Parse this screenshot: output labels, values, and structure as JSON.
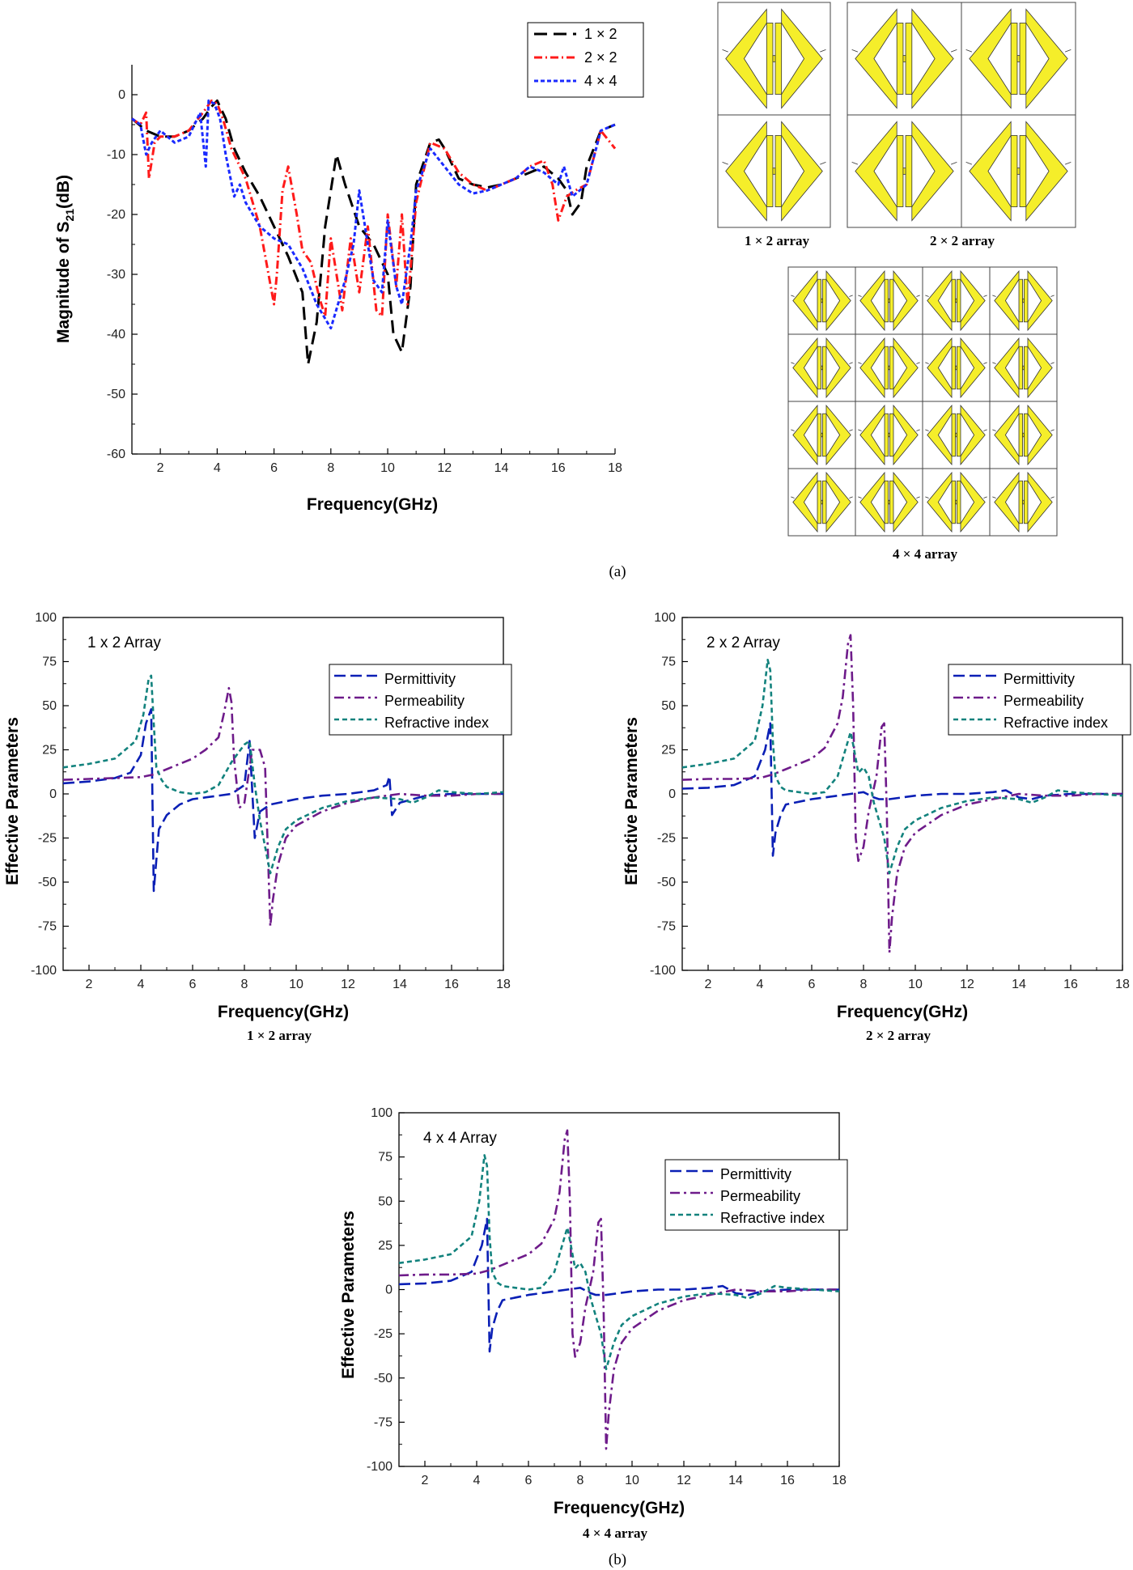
{
  "panel_labels": {
    "a": "(a)",
    "b": "(b)"
  },
  "unit_cells": {
    "captions": [
      "1 × 2 array",
      "2 × 2 array",
      "4 × 4 array"
    ],
    "fill_color": "#f5ee2a",
    "outline_color": "#333333",
    "grids": [
      [
        2,
        1
      ],
      [
        2,
        2
      ],
      [
        4,
        4
      ]
    ]
  },
  "chart_data": [
    {
      "type": "line",
      "ylabel": "Magnitude of S21(dB)",
      "ylabel_main": "Magnitude of S",
      "ylabel_sub": "21",
      "ylabel_tail": "(dB)",
      "xlabel": "Frequency(GHz)",
      "xlim": [
        1,
        18
      ],
      "ylim": [
        -60,
        5
      ],
      "xticks": [
        2,
        4,
        6,
        8,
        10,
        12,
        14,
        16,
        18
      ],
      "yticks": [
        0,
        -10,
        -20,
        -30,
        -40,
        -50,
        -60
      ],
      "legend_position": "top-right",
      "series": [
        {
          "name": "1 × 2",
          "color": "#000000",
          "dash": "16 8",
          "x": [
            1,
            1.5,
            2,
            2.5,
            3,
            3.5,
            3.8,
            4,
            4.3,
            4.6,
            5,
            5.5,
            6,
            6.5,
            7,
            7.2,
            7.5,
            7.8,
            8.2,
            8.5,
            9,
            9.5,
            10,
            10.2,
            10.5,
            10.8,
            11,
            11.5,
            11.8,
            12,
            12.5,
            13,
            13.5,
            14,
            14.5,
            15,
            15.5,
            16,
            16.3,
            16.5,
            16.8,
            17,
            17.5,
            18
          ],
          "y": [
            -4,
            -6,
            -7,
            -7,
            -6,
            -4,
            -2,
            -1,
            -4,
            -9,
            -13,
            -17,
            -22,
            -27,
            -33,
            -45,
            -38,
            -22,
            -10,
            -15,
            -22,
            -25,
            -30,
            -40,
            -43,
            -32,
            -15,
            -8,
            -7.5,
            -9,
            -14,
            -15,
            -15.5,
            -15,
            -14,
            -13,
            -12,
            -14,
            -16,
            -20,
            -18,
            -12,
            -6,
            -5
          ]
        },
        {
          "name": "2 × 2",
          "color": "#ff1a1a",
          "dash": "10 4 2 4",
          "x": [
            1,
            1.3,
            1.5,
            1.6,
            1.8,
            2,
            2.5,
            3,
            3.5,
            3.8,
            4,
            4.2,
            4.5,
            4.8,
            5,
            5.5,
            6,
            6.1,
            6.3,
            6.5,
            6.8,
            7,
            7.3,
            7.6,
            7.8,
            8,
            8.2,
            8.4,
            8.7,
            9,
            9.3,
            9.6,
            9.8,
            10,
            10.3,
            10.5,
            10.7,
            11,
            11.5,
            12,
            12.5,
            13,
            13.5,
            14,
            14.5,
            15,
            15.5,
            15.8,
            16,
            16.3,
            16.6,
            17,
            17.5,
            18
          ],
          "y": [
            -4,
            -5,
            -3,
            -14,
            -8,
            -7,
            -7,
            -6,
            -3,
            -1,
            -1.5,
            -4,
            -9,
            -12,
            -14,
            -22,
            -35,
            -30,
            -16,
            -12,
            -20,
            -26,
            -28,
            -34,
            -37,
            -24,
            -30,
            -36,
            -24,
            -33,
            -22,
            -36,
            -37,
            -20,
            -32,
            -20,
            -35,
            -18,
            -8,
            -9,
            -13,
            -15,
            -16,
            -15,
            -14,
            -12,
            -11,
            -15,
            -21,
            -17,
            -16,
            -15,
            -6,
            -9
          ]
        },
        {
          "name": "4 × 4",
          "color": "#1a2aff",
          "dash": "5 3",
          "x": [
            1,
            1.3,
            1.5,
            1.7,
            2,
            2.5,
            3,
            3.4,
            3.6,
            3.7,
            3.9,
            4.1,
            4.3,
            4.6,
            4.8,
            5,
            5.5,
            6,
            6.5,
            7,
            7.5,
            8,
            8.5,
            8.8,
            9,
            9.2,
            9.5,
            9.8,
            10,
            10.3,
            10.5,
            10.8,
            11,
            11.5,
            12,
            12.5,
            13,
            13.5,
            14,
            14.5,
            15,
            15.5,
            16,
            16.2,
            16.5,
            17,
            17.5,
            18
          ],
          "y": [
            -4,
            -5,
            -10,
            -8,
            -6,
            -8,
            -7,
            -3,
            -12,
            -1,
            -1.5,
            -4,
            -10,
            -17,
            -15,
            -18,
            -22,
            -24,
            -25,
            -29,
            -35,
            -39,
            -31,
            -25,
            -16,
            -22,
            -31,
            -33,
            -21,
            -32,
            -35,
            -25,
            -16,
            -9,
            -12,
            -15,
            -16.5,
            -16,
            -15,
            -14,
            -12,
            -13,
            -15,
            -12,
            -17,
            -15,
            -6,
            -5
          ]
        }
      ]
    },
    {
      "type": "line",
      "annotation": "1 x 2 Array",
      "caption": "1 × 2 array",
      "ylabel": "Effective Parameters",
      "xlabel": "Frequency(GHz)",
      "xlim": [
        1,
        18
      ],
      "ylim": [
        -100,
        100
      ],
      "xticks": [
        2,
        4,
        6,
        8,
        10,
        12,
        14,
        16,
        18
      ],
      "yticks": [
        100,
        75,
        50,
        25,
        0,
        -25,
        -50,
        -75,
        -100
      ],
      "legend_position": "top-right",
      "series": [
        {
          "name": "Permittivity",
          "color": "#0a1fb5",
          "dash": "14 6",
          "x": [
            1,
            2,
            3,
            3.6,
            4,
            4.2,
            4.4,
            4.5,
            4.7,
            5,
            5.5,
            6,
            7,
            7.5,
            8,
            8.2,
            8.4,
            8.6,
            9,
            10,
            11,
            12,
            13,
            13.5,
            13.6,
            13.7,
            14,
            15,
            16,
            17,
            18
          ],
          "y": [
            6,
            7,
            9,
            12,
            22,
            40,
            48,
            -55,
            -20,
            -12,
            -6,
            -3,
            -1,
            0,
            5,
            30,
            -25,
            -10,
            -6,
            -3,
            -1,
            0,
            2,
            5,
            10,
            -12,
            -5,
            -1,
            0,
            0,
            0
          ]
        },
        {
          "name": "Permeability",
          "color": "#6e1b8a",
          "dash": "12 5 3 5",
          "x": [
            1,
            2,
            3,
            4,
            4.5,
            5,
            6,
            6.5,
            7,
            7.2,
            7.4,
            7.5,
            7.6,
            7.8,
            8,
            8.3,
            8.6,
            8.8,
            8.9,
            9,
            9.1,
            9.3,
            9.6,
            10,
            11,
            12,
            13,
            14,
            15,
            16,
            17,
            18
          ],
          "y": [
            8,
            8.5,
            9,
            9.5,
            11,
            14,
            20,
            25,
            32,
            45,
            60,
            52,
            20,
            -8,
            -5,
            25,
            25,
            15,
            -30,
            -75,
            -60,
            -40,
            -25,
            -18,
            -10,
            -5,
            -2,
            0,
            -1,
            -1,
            0,
            0
          ]
        },
        {
          "name": "Refractive index",
          "color": "#12827d",
          "dash": "6 4",
          "x": [
            1,
            2,
            3,
            3.8,
            4.1,
            4.3,
            4.4,
            4.5,
            4.6,
            4.8,
            5,
            5.5,
            6,
            6.5,
            7,
            7.5,
            8,
            8.2,
            8.4,
            8.6,
            8.8,
            9,
            9.3,
            9.6,
            10,
            11,
            12,
            13,
            14,
            14.5,
            15,
            15.5,
            16,
            17,
            18
          ],
          "y": [
            15,
            17,
            20,
            30,
            45,
            65,
            67,
            40,
            15,
            8,
            4,
            1,
            0,
            1,
            5,
            18,
            28,
            30,
            5,
            -15,
            -30,
            -45,
            -30,
            -20,
            -15,
            -8,
            -4,
            -2,
            -3,
            -5,
            -2,
            2,
            1,
            0,
            1
          ]
        }
      ]
    },
    {
      "type": "line",
      "annotation": "2 x 2 Array",
      "caption": "2 × 2 array",
      "ylabel": "Effective Parameters",
      "xlabel": "Frequency(GHz)",
      "xlim": [
        1,
        18
      ],
      "ylim": [
        -100,
        100
      ],
      "xticks": [
        2,
        4,
        6,
        8,
        10,
        12,
        14,
        16,
        18
      ],
      "yticks": [
        100,
        75,
        50,
        25,
        0,
        -25,
        -50,
        -75,
        -100
      ],
      "legend_position": "top-right",
      "series": [
        {
          "name": "Permittivity",
          "color": "#0a1fb5",
          "dash": "14 6",
          "x": [
            1,
            2,
            3,
            3.8,
            4.2,
            4.4,
            4.5,
            4.6,
            4.8,
            5,
            6,
            7,
            7.5,
            8,
            8.4,
            8.6,
            9,
            10,
            11,
            12,
            13,
            13.5,
            14,
            14.5,
            15,
            16,
            17,
            18
          ],
          "y": [
            3,
            3.5,
            5,
            10,
            25,
            40,
            -35,
            -22,
            -12,
            -6,
            -3,
            -1,
            0,
            1,
            -2,
            -3,
            -3,
            -1,
            0,
            0,
            1,
            2,
            -2,
            -3,
            -1,
            0,
            0,
            0
          ]
        },
        {
          "name": "Permeability",
          "color": "#6e1b8a",
          "dash": "12 5 3 5",
          "x": [
            1,
            2,
            3,
            4,
            4.5,
            5,
            6,
            6.5,
            7,
            7.2,
            7.4,
            7.5,
            7.6,
            7.7,
            7.8,
            8,
            8.2,
            8.5,
            8.7,
            8.8,
            8.9,
            9,
            9.1,
            9.3,
            9.6,
            10,
            11,
            12,
            13,
            14,
            15,
            16,
            17,
            18
          ],
          "y": [
            8,
            8.5,
            8.5,
            9,
            11,
            14,
            20,
            26,
            40,
            55,
            85,
            90,
            50,
            -25,
            -38,
            -30,
            -10,
            10,
            38,
            40,
            -10,
            -90,
            -70,
            -45,
            -30,
            -22,
            -12,
            -6,
            -3,
            0,
            -1,
            -1,
            0,
            0
          ]
        },
        {
          "name": "Refractive index",
          "color": "#12827d",
          "dash": "6 4",
          "x": [
            1,
            2,
            3,
            3.8,
            4.1,
            4.3,
            4.4,
            4.5,
            4.6,
            4.8,
            5,
            5.5,
            6,
            6.5,
            7,
            7.3,
            7.5,
            7.6,
            7.8,
            8,
            8.2,
            8.4,
            8.6,
            8.8,
            9,
            9.3,
            9.6,
            10,
            11,
            12,
            13,
            14,
            14.5,
            15,
            15.5,
            16,
            17,
            18
          ],
          "y": [
            15,
            17,
            20,
            30,
            50,
            76,
            70,
            30,
            10,
            4,
            2,
            1,
            0,
            1,
            10,
            25,
            35,
            28,
            12,
            15,
            10,
            -5,
            -15,
            -25,
            -45,
            -30,
            -20,
            -15,
            -8,
            -4,
            -2,
            -3,
            -5,
            -2,
            2,
            1,
            0,
            -1
          ]
        }
      ]
    },
    {
      "type": "line",
      "annotation": "4 x 4 Array",
      "caption": "4 × 4 array",
      "ylabel": "Effective Parameters",
      "xlabel": "Frequency(GHz)",
      "xlim": [
        1,
        18
      ],
      "ylim": [
        -100,
        100
      ],
      "xticks": [
        2,
        4,
        6,
        8,
        10,
        12,
        14,
        16,
        18
      ],
      "yticks": [
        100,
        75,
        50,
        25,
        0,
        -25,
        -50,
        -75,
        -100
      ],
      "legend_position": "top-right",
      "series": [
        {
          "name": "Permittivity",
          "color": "#0a1fb5",
          "dash": "14 6",
          "x": [
            1,
            2,
            3,
            3.8,
            4.2,
            4.4,
            4.5,
            4.6,
            4.8,
            5,
            6,
            7,
            7.5,
            8,
            8.4,
            8.6,
            9,
            10,
            11,
            12,
            13,
            13.5,
            14,
            14.5,
            15,
            16,
            17,
            18
          ],
          "y": [
            3,
            3.5,
            5,
            10,
            25,
            40,
            -35,
            -22,
            -12,
            -6,
            -3,
            -1,
            0,
            1,
            -2,
            -3,
            -3,
            -1,
            0,
            0,
            1,
            2,
            -2,
            -3,
            -1,
            0,
            0,
            0
          ]
        },
        {
          "name": "Permeability",
          "color": "#6e1b8a",
          "dash": "12 5 3 5",
          "x": [
            1,
            2,
            3,
            4,
            4.5,
            5,
            6,
            6.5,
            7,
            7.2,
            7.4,
            7.5,
            7.6,
            7.7,
            7.8,
            8,
            8.2,
            8.5,
            8.7,
            8.8,
            8.9,
            9,
            9.1,
            9.3,
            9.6,
            10,
            11,
            12,
            13,
            14,
            15,
            16,
            17,
            18
          ],
          "y": [
            8,
            8.5,
            8.5,
            9,
            11,
            14,
            20,
            26,
            40,
            55,
            85,
            90,
            50,
            -25,
            -38,
            -30,
            -10,
            10,
            38,
            40,
            -10,
            -90,
            -70,
            -45,
            -30,
            -22,
            -12,
            -6,
            -3,
            0,
            -1,
            -1,
            0,
            0
          ]
        },
        {
          "name": "Refractive index",
          "color": "#12827d",
          "dash": "6 4",
          "x": [
            1,
            2,
            3,
            3.8,
            4.1,
            4.3,
            4.4,
            4.5,
            4.6,
            4.8,
            5,
            5.5,
            6,
            6.5,
            7,
            7.3,
            7.5,
            7.6,
            7.8,
            8,
            8.2,
            8.4,
            8.6,
            8.8,
            9,
            9.3,
            9.6,
            10,
            11,
            12,
            13,
            14,
            14.5,
            15,
            15.5,
            16,
            17,
            18
          ],
          "y": [
            15,
            17,
            20,
            30,
            50,
            76,
            70,
            30,
            10,
            4,
            2,
            1,
            0,
            1,
            10,
            25,
            35,
            28,
            12,
            15,
            10,
            -5,
            -15,
            -25,
            -45,
            -30,
            -20,
            -15,
            -8,
            -4,
            -2,
            -3,
            -5,
            -2,
            2,
            1,
            0,
            -1
          ]
        }
      ]
    }
  ]
}
